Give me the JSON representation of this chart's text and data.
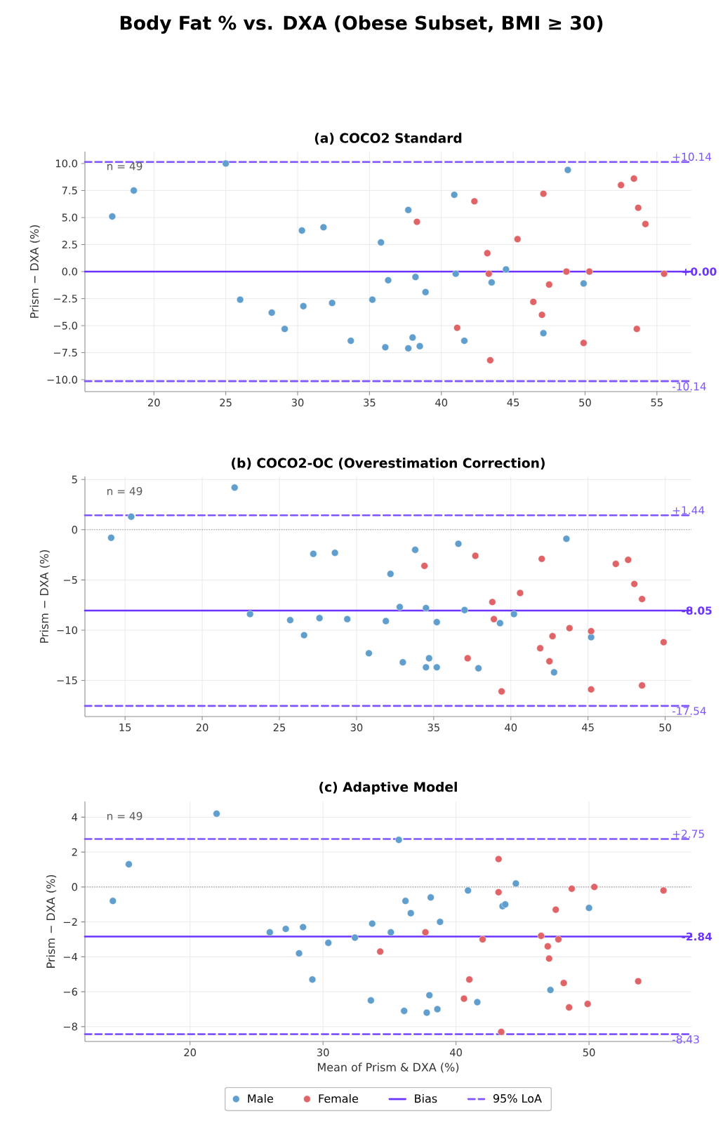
{
  "chart_data": [
    {
      "type": "scatter",
      "title": "Body Fat % vs. DXA (Obese Subset, BMI ≥ 30)",
      "subtitle": "(a) COCO2 Standard",
      "ylabel": "Prism − DXA (%)",
      "xlim": [
        15.2,
        57.4
      ],
      "ylim": [
        -11.1,
        11.1
      ],
      "xticks": [
        20,
        25,
        30,
        35,
        40,
        45,
        50,
        55
      ],
      "yticks": [
        {
          "value": -10,
          "label": "−10.0"
        },
        {
          "value": -7.5,
          "label": "−7.5"
        },
        {
          "value": -5,
          "label": "−5.0"
        },
        {
          "value": -2.5,
          "label": "−2.5"
        },
        {
          "value": 0,
          "label": "0.0"
        },
        {
          "value": 2.5,
          "label": "2.5"
        },
        {
          "value": 5,
          "label": "5.0"
        },
        {
          "value": 7.5,
          "label": "7.5"
        },
        {
          "value": 10,
          "label": "10.0"
        }
      ],
      "grid": true,
      "series": [
        {
          "marker": "circle",
          "color": "#5f9ecd",
          "x": [
            17.1,
            18.6,
            25.0,
            26.0,
            28.2,
            29.1,
            30.3,
            30.4,
            31.8,
            32.4,
            33.7,
            35.2,
            35.8,
            36.1,
            36.3,
            37.7,
            37.7,
            38.0,
            38.2,
            38.5,
            38.9,
            40.9,
            41.0,
            41.6,
            43.5,
            44.5,
            47.1,
            48.8,
            49.9
          ],
          "values": [
            5.1,
            7.5,
            10.0,
            -2.6,
            -3.8,
            -5.3,
            3.8,
            -3.2,
            4.1,
            -2.9,
            -6.4,
            -2.6,
            2.7,
            -7.0,
            -0.8,
            5.7,
            -7.1,
            -6.1,
            -0.5,
            -6.9,
            -1.9,
            7.1,
            -0.2,
            -6.4,
            -1.0,
            0.2,
            -5.7,
            9.4,
            -1.1
          ]
        },
        {
          "marker": "circle",
          "color": "#e06467",
          "x": [
            38.3,
            41.1,
            42.3,
            43.2,
            43.3,
            43.4,
            45.3,
            46.4,
            47.1,
            47.0,
            47.5,
            48.7,
            49.9,
            50.3,
            52.5,
            53.4,
            53.7,
            53.6,
            54.2,
            55.5
          ],
          "values": [
            4.6,
            -5.2,
            6.5,
            1.7,
            -0.2,
            -8.2,
            3.0,
            -2.8,
            7.2,
            -4.0,
            -1.2,
            0.0,
            -6.6,
            0.0,
            8.0,
            8.6,
            5.9,
            -5.3,
            4.4,
            -0.2
          ]
        },
        {
          "type": "line",
          "marker": "none",
          "color": "#6a33ff",
          "line_style": "solid",
          "x": [
            15.2,
            57.4
          ],
          "values": [
            0.0,
            0.0
          ]
        },
        {
          "type": "line",
          "marker": "none",
          "color": "#7f55ff",
          "line_style": "dashed",
          "x": [
            15.2,
            57.4
          ],
          "values": [
            10.14,
            10.14
          ]
        },
        {
          "type": "line",
          "marker": "none",
          "color": "#7f55ff",
          "line_style": "dashed",
          "x": [
            15.2,
            57.4
          ],
          "values": [
            -10.14,
            -10.14
          ]
        }
      ],
      "annotations": [
        "n = 49",
        {
          "text": "+10.14",
          "x": 57.4,
          "y": 10.14
        },
        {
          "text": "+0.00",
          "x": 57.4,
          "y": 0.0
        },
        {
          "text": "-10.14",
          "x": 57.4,
          "y": -10.14
        }
      ]
    },
    {
      "type": "scatter",
      "title": "(b) COCO2-OC (Overestimation Correction)",
      "ylabel": "Prism − DXA (%)",
      "xlim": [
        12.4,
        51.7
      ],
      "ylim": [
        -18.6,
        5.3
      ],
      "xticks": [
        15,
        20,
        25,
        30,
        35,
        40,
        45,
        50
      ],
      "yticks": [
        {
          "value": -15,
          "label": "−15"
        },
        {
          "value": -10,
          "label": "−10"
        },
        {
          "value": -5,
          "label": "−5"
        },
        0,
        5
      ],
      "grid": true,
      "series": [
        {
          "marker": "circle",
          "color": "#5f9ecd",
          "x": [
            14.1,
            15.4,
            22.1,
            23.1,
            25.7,
            26.6,
            27.2,
            27.6,
            28.6,
            29.4,
            30.8,
            31.9,
            32.2,
            32.8,
            33.0,
            33.8,
            34.5,
            34.5,
            34.7,
            35.2,
            35.2,
            36.6,
            37.0,
            37.9,
            39.3,
            40.2,
            42.8,
            43.6,
            45.2
          ],
          "values": [
            -0.8,
            1.3,
            4.2,
            -8.4,
            -9.0,
            -10.5,
            -2.4,
            -8.8,
            -2.3,
            -8.9,
            -12.3,
            -9.1,
            -4.4,
            -7.7,
            -13.2,
            -2.0,
            -13.7,
            -7.8,
            -12.8,
            -13.7,
            -9.2,
            -1.4,
            -8.0,
            -13.8,
            -9.3,
            -8.4,
            -14.2,
            -0.9,
            -10.7
          ]
        },
        {
          "marker": "circle",
          "color": "#e06467",
          "x": [
            34.4,
            37.2,
            37.7,
            38.8,
            38.9,
            39.4,
            40.6,
            41.9,
            42.0,
            42.5,
            42.7,
            43.8,
            45.2,
            45.2,
            46.8,
            47.6,
            48.0,
            48.5,
            48.5,
            49.9
          ],
          "values": [
            -3.6,
            -12.8,
            -2.6,
            -7.2,
            -8.9,
            -16.1,
            -6.3,
            -11.8,
            -2.9,
            -13.1,
            -10.6,
            -9.8,
            -10.1,
            -15.9,
            -3.4,
            -3.0,
            -5.4,
            -6.9,
            -15.5,
            -11.2
          ]
        },
        {
          "type": "line",
          "marker": "none",
          "color": "#6a33ff",
          "line_style": "solid",
          "x": [
            12.4,
            51.7
          ],
          "values": [
            -8.05,
            -8.05
          ]
        },
        {
          "type": "line",
          "marker": "none",
          "color": "#7f55ff",
          "line_style": "dashed",
          "x": [
            12.4,
            51.7
          ],
          "values": [
            1.44,
            1.44
          ]
        },
        {
          "type": "line",
          "marker": "none",
          "color": "#7f55ff",
          "line_style": "dashed",
          "x": [
            12.4,
            51.7
          ],
          "values": [
            -17.54,
            -17.54
          ]
        }
      ],
      "ref_lines": [
        {
          "axis": "y",
          "value": 0,
          "color": "#999999",
          "line_style": "dotted"
        }
      ],
      "annotations": [
        "n = 49",
        {
          "text": "+1.44",
          "x": 51.7,
          "y": 1.44
        },
        {
          "text": "-8.05",
          "x": 51.7,
          "y": -8.05
        },
        {
          "text": "-17.54",
          "x": 51.7,
          "y": -17.54
        }
      ]
    },
    {
      "type": "scatter",
      "title": "(c) Adaptive Model",
      "xlabel": "Mean of Prism & DXA (%)",
      "ylabel": "Prism − DXA (%)",
      "xlim": [
        12.1,
        57.7
      ],
      "ylim": [
        -8.85,
        4.9
      ],
      "xticks": [
        20,
        30,
        40,
        50
      ],
      "yticks": [
        {
          "value": -8,
          "label": "−8"
        },
        {
          "value": -6,
          "label": "−6"
        },
        {
          "value": -4,
          "label": "−4"
        },
        {
          "value": -2,
          "label": "−2"
        },
        0,
        2,
        4
      ],
      "grid": true,
      "legend": "bottom",
      "series": [
        {
          "name": "Male",
          "marker": "circle",
          "color": "#5f9ecd",
          "x": [
            14.2,
            15.4,
            22.0,
            26.0,
            27.2,
            28.2,
            28.5,
            29.2,
            30.4,
            32.4,
            33.7,
            33.6,
            35.1,
            35.7,
            36.1,
            36.2,
            36.6,
            37.8,
            38.0,
            38.1,
            38.6,
            38.8,
            40.9,
            41.6,
            43.5,
            43.7,
            44.5,
            47.1,
            50.0
          ],
          "values": [
            -0.8,
            1.3,
            4.2,
            -2.6,
            -2.4,
            -3.8,
            -2.3,
            -5.3,
            -3.2,
            -2.9,
            -2.1,
            -6.5,
            -2.6,
            2.7,
            -7.1,
            -0.8,
            -1.5,
            -7.2,
            -6.2,
            -0.6,
            -7.0,
            -2.0,
            -0.2,
            -6.6,
            -1.1,
            -1.0,
            0.2,
            -5.9,
            -1.2
          ]
        },
        {
          "name": "Female",
          "marker": "circle",
          "color": "#e06467",
          "x": [
            34.3,
            37.7,
            40.6,
            41.0,
            42.0,
            43.2,
            43.2,
            43.4,
            46.4,
            46.9,
            47.0,
            47.5,
            47.7,
            48.1,
            48.5,
            48.7,
            49.9,
            50.4,
            53.7,
            55.6
          ],
          "values": [
            -3.7,
            -2.6,
            -6.4,
            -5.3,
            -3.0,
            1.6,
            -0.3,
            -8.3,
            -2.8,
            -3.4,
            -4.1,
            -1.3,
            -3.0,
            -5.5,
            -6.9,
            -0.1,
            -6.7,
            0.0,
            -5.4,
            -0.2
          ]
        },
        {
          "name": "Bias",
          "type": "line",
          "marker": "none",
          "color": "#6a33ff",
          "line_style": "solid",
          "x": [
            12.1,
            57.7
          ],
          "values": [
            -2.84,
            -2.84
          ]
        },
        {
          "name": "95% LoA",
          "type": "line",
          "marker": "none",
          "color": "#7f55ff",
          "line_style": "dashed",
          "x": [
            12.1,
            57.7
          ],
          "values": [
            2.75,
            2.75
          ]
        },
        {
          "type": "line",
          "marker": "none",
          "color": "#7f55ff",
          "line_style": "dashed",
          "x": [
            12.1,
            57.7
          ],
          "values": [
            -8.43,
            -8.43
          ]
        }
      ],
      "ref_lines": [
        {
          "axis": "y",
          "value": 0,
          "color": "#999999",
          "line_style": "dotted"
        }
      ],
      "annotations": [
        "n = 49",
        {
          "text": "+2.75",
          "x": 57.7,
          "y": 2.75
        },
        {
          "text": "-2.84",
          "x": 57.7,
          "y": -2.84
        },
        {
          "text": "-8.43",
          "x": 57.7,
          "y": -8.43
        }
      ]
    }
  ]
}
